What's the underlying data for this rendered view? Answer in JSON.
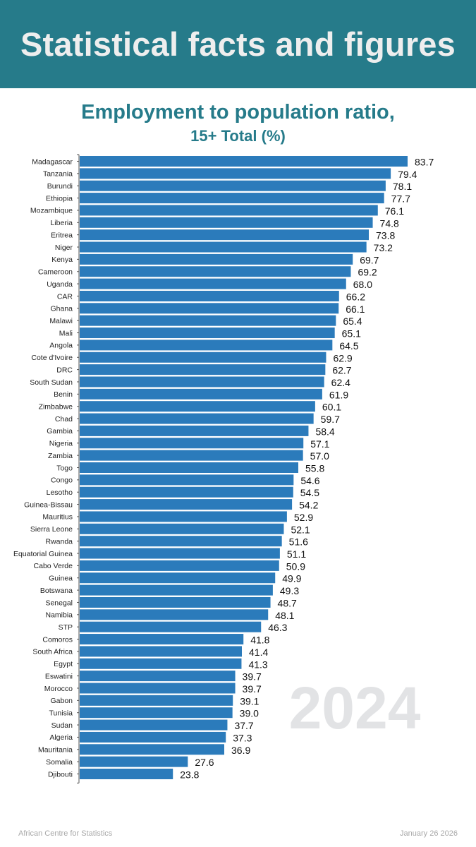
{
  "header": {
    "title": "Statistical facts and figures"
  },
  "colors": {
    "banner": "#267b8a",
    "bar": "#2b7bbb",
    "watermark": "#e2e3e5"
  },
  "footer": {
    "source": "African Centre for Statistics",
    "date": "January 26 2026"
  },
  "chart_data": {
    "type": "bar",
    "orientation": "horizontal",
    "title": "Employment to population ratio,",
    "subtitle": "15+ Total (%)",
    "watermark": "2024",
    "xlabel": "",
    "ylabel": "",
    "xlim": [
      0,
      100
    ],
    "grid": false,
    "legend": "none",
    "categories": [
      "Madagascar",
      "Tanzania",
      "Burundi",
      "Ethiopia",
      "Mozambique",
      "Liberia",
      "Eritrea",
      "Niger",
      "Kenya",
      "Cameroon",
      "Uganda",
      "CAR",
      "Ghana",
      "Malawi",
      "Mali",
      "Angola",
      "Cote d'Ivoire",
      "DRC",
      "South Sudan",
      "Benin",
      "Zimbabwe",
      "Chad",
      "Gambia",
      "Nigeria",
      "Zambia",
      "Togo",
      "Congo",
      "Lesotho",
      "Guinea-Bissau",
      "Mauritius",
      "Sierra Leone",
      "Rwanda",
      "Equatorial Guinea",
      "Cabo Verde",
      "Guinea",
      "Botswana",
      "Senegal",
      "Namibia",
      "STP",
      "Comoros",
      "South Africa",
      "Egypt",
      "Eswatini",
      "Morocco",
      "Gabon",
      "Tunisia",
      "Sudan",
      "Algeria",
      "Mauritania",
      "Somalia",
      "Djibouti"
    ],
    "values": [
      83.7,
      79.4,
      78.1,
      77.7,
      76.1,
      74.8,
      73.8,
      73.2,
      69.7,
      69.2,
      68.0,
      66.2,
      66.1,
      65.4,
      65.1,
      64.5,
      62.9,
      62.7,
      62.4,
      61.9,
      60.1,
      59.7,
      58.4,
      57.1,
      57.0,
      55.8,
      54.6,
      54.5,
      54.2,
      52.9,
      52.1,
      51.6,
      51.1,
      50.9,
      49.9,
      49.3,
      48.7,
      48.1,
      46.3,
      41.8,
      41.4,
      41.3,
      39.7,
      39.7,
      39.1,
      39.0,
      37.7,
      37.3,
      36.9,
      27.6,
      23.8
    ],
    "value_labels": [
      "83.7",
      "79.4",
      "78.1",
      "77.7",
      "76.1",
      "74.8",
      "73.8",
      "73.2",
      "69.7",
      "69.2",
      "68.0",
      "66.2",
      "66.1",
      "65.4",
      "65.1",
      "64.5",
      "62.9",
      "62.7",
      "62.4",
      "61.9",
      "60.1",
      "59.7",
      "58.4",
      "57.1",
      "57.0",
      "55.8",
      "54.6",
      "54.5",
      "54.2",
      "52.9",
      "52.1",
      "51.6",
      "51.1",
      "50.9",
      "49.9",
      "49.3",
      "48.7",
      "48.1",
      "46.3",
      "41.8",
      "41.4",
      "41.3",
      "39.7",
      "39.7",
      "39.1",
      "39.0",
      "37.7",
      "37.3",
      "36.9",
      "27.6",
      "23.8"
    ]
  }
}
